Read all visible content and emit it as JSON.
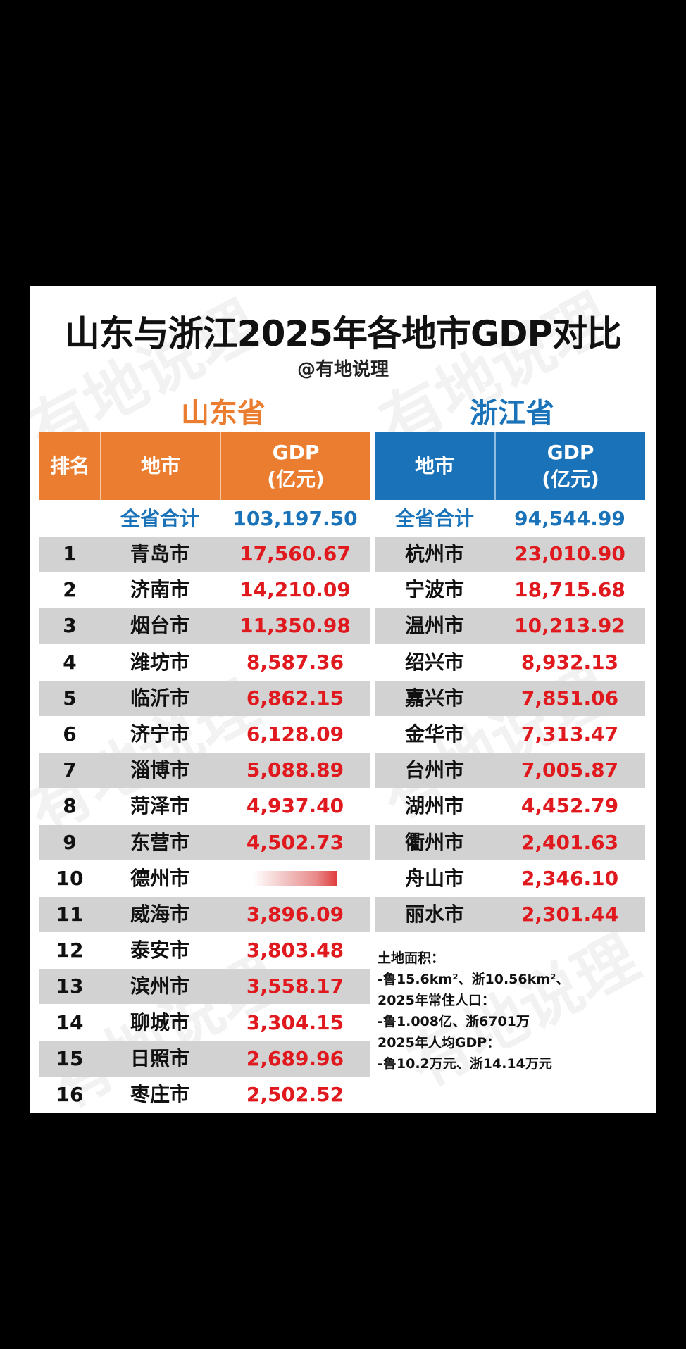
{
  "title": "山东与浙江2025年各地市GDP对比",
  "author": "@有地说理",
  "watermark": "有地说理",
  "chart_data": {
    "type": "table",
    "provinces": [
      {
        "name": "山东省",
        "color": "#ea7d2f",
        "headers": [
          "排名",
          "地市",
          "GDP\n(亿元)"
        ],
        "total_label": "全省合计",
        "total": "103,197.50",
        "rows": [
          {
            "rank": "1",
            "city": "青岛市",
            "gdp": "17,560.67"
          },
          {
            "rank": "2",
            "city": "济南市",
            "gdp": "14,210.09"
          },
          {
            "rank": "3",
            "city": "烟台市",
            "gdp": "11,350.98"
          },
          {
            "rank": "4",
            "city": "潍坊市",
            "gdp": "8,587.36"
          },
          {
            "rank": "5",
            "city": "临沂市",
            "gdp": "6,862.15"
          },
          {
            "rank": "6",
            "city": "济宁市",
            "gdp": "6,128.09"
          },
          {
            "rank": "7",
            "city": "淄博市",
            "gdp": "5,088.89"
          },
          {
            "rank": "8",
            "city": "菏泽市",
            "gdp": "4,937.40"
          },
          {
            "rank": "9",
            "city": "东营市",
            "gdp": "4,502.73"
          },
          {
            "rank": "10",
            "city": "德州市",
            "gdp": ""
          },
          {
            "rank": "11",
            "city": "威海市",
            "gdp": "3,896.09"
          },
          {
            "rank": "12",
            "city": "泰安市",
            "gdp": "3,803.48"
          },
          {
            "rank": "13",
            "city": "滨州市",
            "gdp": "3,558.17"
          },
          {
            "rank": "14",
            "city": "聊城市",
            "gdp": "3,304.15"
          },
          {
            "rank": "15",
            "city": "日照市",
            "gdp": "2,689.96"
          },
          {
            "rank": "16",
            "city": "枣庄市",
            "gdp": "2,502.52"
          }
        ]
      },
      {
        "name": "浙江省",
        "color": "#1a73b9",
        "headers": [
          "地市",
          "GDP\n(亿元)"
        ],
        "total_label": "全省合计",
        "total": "94,544.99",
        "rows": [
          {
            "city": "杭州市",
            "gdp": "23,010.90"
          },
          {
            "city": "宁波市",
            "gdp": "18,715.68"
          },
          {
            "city": "温州市",
            "gdp": "10,213.92"
          },
          {
            "city": "绍兴市",
            "gdp": "8,932.13"
          },
          {
            "city": "嘉兴市",
            "gdp": "7,851.06"
          },
          {
            "city": "金华市",
            "gdp": "7,313.47"
          },
          {
            "city": "台州市",
            "gdp": "7,005.87"
          },
          {
            "city": "湖州市",
            "gdp": "4,452.79"
          },
          {
            "city": "衢州市",
            "gdp": "2,401.63"
          },
          {
            "city": "舟山市",
            "gdp": "2,346.10"
          },
          {
            "city": "丽水市",
            "gdp": "2,301.44"
          }
        ]
      }
    ]
  },
  "notes": [
    "土地面积：",
    "-鲁15.6km²、浙10.56km²、",
    "2025年常住人口：",
    "-鲁1.008亿、浙6701万",
    "2025年人均GDP：",
    "-鲁10.2万元、浙14.14万元"
  ],
  "colors": {
    "orange": "#ea7d2f",
    "blue": "#1a73b9",
    "red": "#e0191e",
    "band": "#d2d2d2"
  }
}
